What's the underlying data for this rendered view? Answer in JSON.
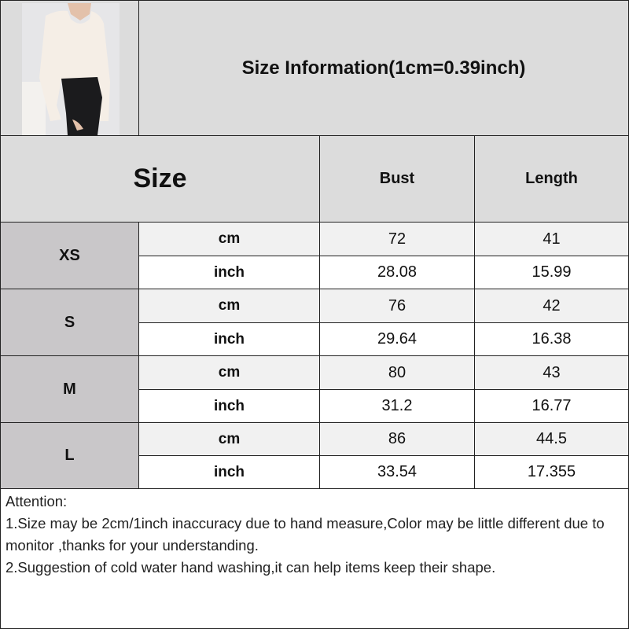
{
  "title": "Size Information(1cm=0.39inch)",
  "header": {
    "size": "Size",
    "bust": "Bust",
    "length": "Length"
  },
  "units": {
    "cm": "cm",
    "inch": "inch"
  },
  "rows": [
    {
      "size": "XS",
      "cm": {
        "bust": "72",
        "length": "41"
      },
      "inch": {
        "bust": "28.08",
        "length": "15.99"
      }
    },
    {
      "size": "S",
      "cm": {
        "bust": "76",
        "length": "42"
      },
      "inch": {
        "bust": "29.64",
        "length": "16.38"
      }
    },
    {
      "size": "M",
      "cm": {
        "bust": "80",
        "length": "43"
      },
      "inch": {
        "bust": "31.2",
        "length": "16.77"
      }
    },
    {
      "size": "L",
      "cm": {
        "bust": "86",
        "length": "44.5"
      },
      "inch": {
        "bust": "33.54",
        "length": "17.355"
      }
    }
  ],
  "notes": [
    "Attention:",
    "1.Size may be 2cm/1inch inaccuracy due to hand measure,Color may be little different due to monitor ,thanks for your understanding.",
    "2.Suggestion of cold water hand washing,it can help items keep their shape."
  ]
}
